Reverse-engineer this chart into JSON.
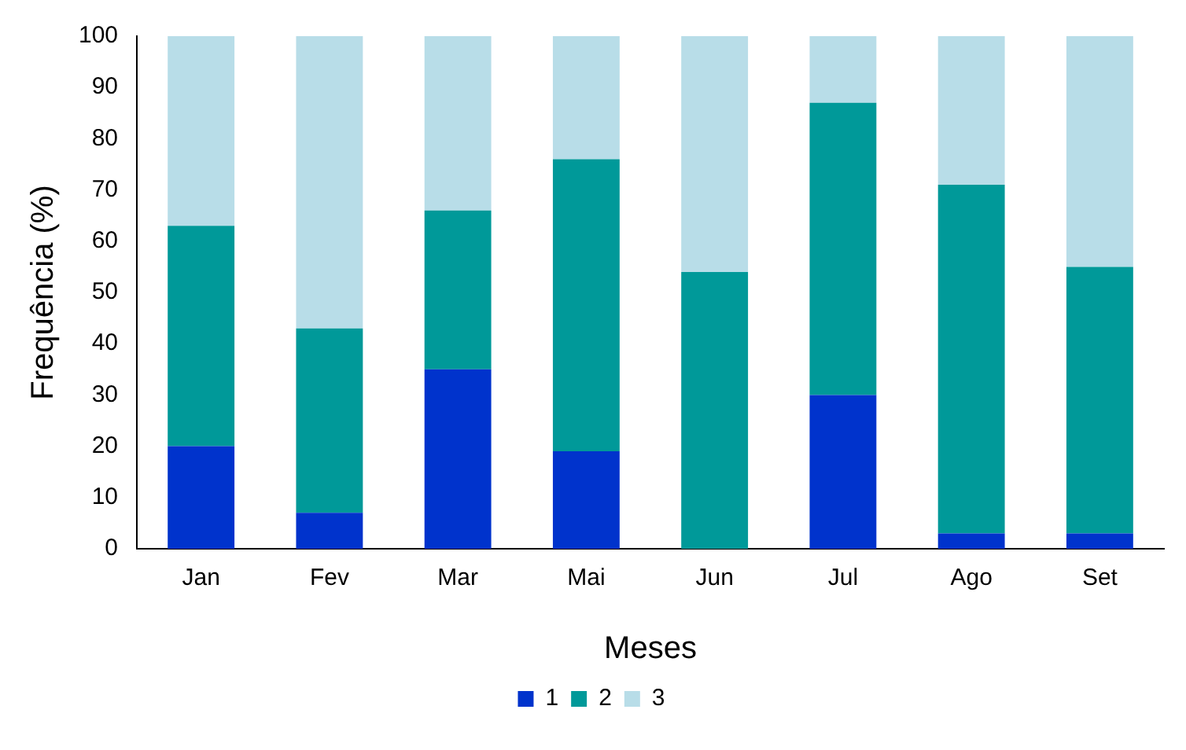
{
  "chart_data": {
    "type": "bar",
    "stacked": true,
    "xlabel": "Meses",
    "ylabel": "Frequência (%)",
    "categories": [
      "Jan",
      "Fev",
      "Mar",
      "Mai",
      "Jun",
      "Jul",
      "Ago",
      "Set"
    ],
    "series": [
      {
        "name": "1",
        "color": "#0033cc",
        "values": [
          20,
          7,
          35,
          19,
          0,
          30,
          3,
          3
        ]
      },
      {
        "name": "2",
        "color": "#009999",
        "values": [
          43,
          36,
          31,
          57,
          54,
          57,
          68,
          52
        ]
      },
      {
        "name": "3",
        "color": "#b8dde8",
        "values": [
          37,
          57,
          34,
          24,
          46,
          13,
          29,
          45
        ]
      }
    ],
    "ylim": [
      0,
      100
    ],
    "yticks": [
      0,
      10,
      20,
      30,
      40,
      50,
      60,
      70,
      80,
      90,
      100
    ],
    "grid": false,
    "legend": "bottom"
  }
}
